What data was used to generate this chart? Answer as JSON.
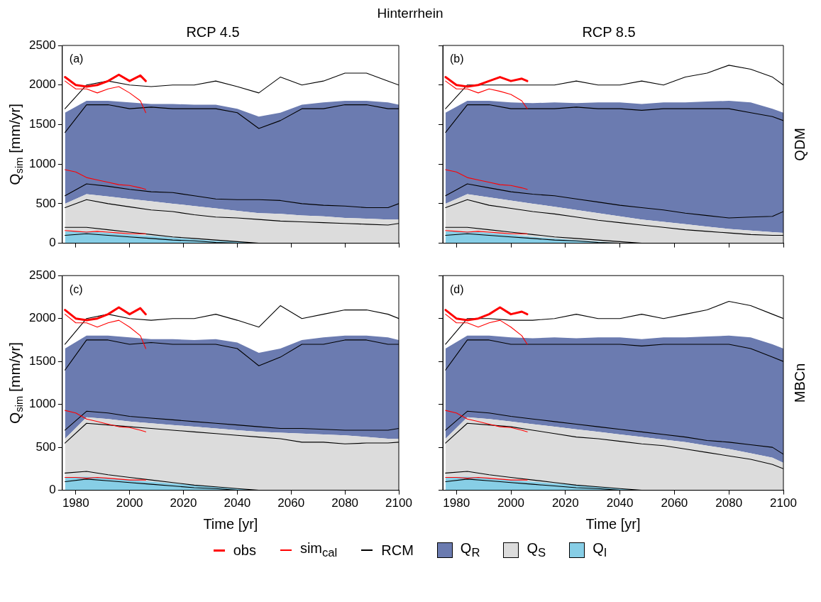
{
  "chart_data": [
    {
      "type": "area",
      "title": "Hinterrhein",
      "subtitle": "RCP 4.5",
      "ylabel": "Q$_{sim}$ [mm/yr]",
      "stacked": true,
      "grid": false,
      "legend": "bottom",
      "tick_labels": "y",
      "xlim": [
        1975,
        2100
      ],
      "xticks": [
        1980,
        2000,
        2020,
        2040,
        2060,
        2080,
        2100
      ],
      "ylim": [
        0,
        2500
      ],
      "yticks": [
        0,
        500,
        1000,
        1500,
        2000,
        2500
      ],
      "annotations": [
        "(a)"
      ],
      "x": [
        1976,
        1984,
        1992,
        2000,
        2008,
        2016,
        2024,
        2032,
        2040,
        2048,
        2056,
        2064,
        2072,
        2080,
        2088,
        2096,
        2100
      ],
      "series": [
        {
          "name": "Q$_{I}$",
          "color": "#87cee6",
          "values": [
            150,
            150,
            130,
            110,
            90,
            70,
            50,
            30,
            20,
            0,
            0,
            0,
            0,
            0,
            0,
            0,
            0
          ]
        },
        {
          "name": "Q$_{S}$",
          "color": "#dcdcdc",
          "values": [
            350,
            470,
            460,
            450,
            440,
            430,
            420,
            410,
            390,
            380,
            370,
            350,
            340,
            320,
            310,
            300,
            300
          ]
        },
        {
          "name": "Q$_{R}$",
          "color": "#6b7bb0",
          "values": [
            1150,
            1180,
            1210,
            1220,
            1230,
            1260,
            1280,
            1310,
            1290,
            1220,
            1280,
            1400,
            1440,
            1480,
            1490,
            1480,
            1450
          ]
        },
        {
          "type": "line",
          "name": "obs",
          "color": "#ff0000",
          "x": [
            1976,
            1980,
            1984,
            1988,
            1992,
            1996,
            2000,
            2004,
            2006
          ],
          "values": [
            2100,
            2000,
            1980,
            2000,
            2050,
            2130,
            2050,
            2120,
            2050
          ]
        },
        {
          "type": "line",
          "name": "sim$_{cal}$",
          "color": "#ff0000",
          "x": [
            1976,
            1980,
            1984,
            1988,
            1992,
            1996,
            2000,
            2004,
            2006
          ],
          "values": [
            2050,
            1950,
            1950,
            1900,
            1950,
            1980,
            1900,
            1800,
            1650
          ]
        },
        {
          "type": "line",
          "color": "#ff0000",
          "x": [
            1976,
            1980,
            1984,
            1988,
            1992,
            1996,
            2000,
            2004,
            2006
          ],
          "values": [
            930,
            900,
            830,
            800,
            770,
            740,
            730,
            700,
            680
          ]
        },
        {
          "type": "line",
          "color": "#ff0000",
          "x": [
            1976,
            1980,
            1984,
            1988,
            1992,
            1996,
            2000,
            2004,
            2006
          ],
          "values": [
            160,
            150,
            140,
            150,
            140,
            130,
            120,
            120,
            120
          ]
        },
        {
          "type": "line",
          "name": "RCM",
          "color": "#000000",
          "values": [
            1700,
            2000,
            2050,
            2000,
            1980,
            2000,
            2000,
            2050,
            1980,
            1900,
            2100,
            2000,
            2050,
            2150,
            2150,
            2050,
            2000
          ]
        },
        {
          "type": "line",
          "color": "#000000",
          "values": [
            1400,
            1750,
            1750,
            1700,
            1720,
            1700,
            1700,
            1700,
            1650,
            1450,
            1550,
            1700,
            1700,
            1750,
            1750,
            1700,
            1700
          ]
        },
        {
          "type": "line",
          "color": "#000000",
          "values": [
            600,
            750,
            720,
            680,
            650,
            640,
            600,
            560,
            550,
            550,
            540,
            500,
            480,
            470,
            450,
            450,
            500
          ]
        },
        {
          "type": "line",
          "color": "#000000",
          "values": [
            450,
            550,
            500,
            460,
            420,
            400,
            360,
            330,
            320,
            300,
            280,
            270,
            260,
            250,
            240,
            230,
            250
          ]
        },
        {
          "type": "line",
          "color": "#000000",
          "values": [
            200,
            200,
            170,
            140,
            110,
            80,
            60,
            40,
            20,
            0,
            0,
            0,
            0,
            0,
            0,
            0,
            0
          ]
        },
        {
          "type": "line",
          "color": "#000000",
          "values": [
            100,
            120,
            100,
            80,
            60,
            40,
            30,
            10,
            0,
            0,
            0,
            0,
            0,
            0,
            0,
            0,
            0
          ]
        }
      ]
    },
    {
      "type": "area",
      "subtitle": "RCP 8.5",
      "stacked": true,
      "grid": false,
      "tick_labels": false,
      "xlim": [
        1975,
        2100
      ],
      "xticks": [
        1980,
        2000,
        2020,
        2040,
        2060,
        2080,
        2100
      ],
      "ylim": [
        0,
        2500
      ],
      "yticks": [
        0,
        500,
        1000,
        1500,
        2000,
        2500
      ],
      "annotations": [
        "(b)",
        "QDM"
      ],
      "x": [
        1976,
        1984,
        1992,
        2000,
        2008,
        2016,
        2024,
        2032,
        2040,
        2048,
        2056,
        2064,
        2072,
        2080,
        2088,
        2096,
        2100
      ],
      "series": [
        {
          "color": "#87cee6",
          "values": [
            150,
            150,
            130,
            110,
            80,
            60,
            40,
            20,
            0,
            0,
            0,
            0,
            0,
            0,
            0,
            0,
            0
          ]
        },
        {
          "color": "#dcdcdc",
          "values": [
            350,
            470,
            450,
            430,
            420,
            400,
            380,
            360,
            340,
            300,
            270,
            240,
            210,
            180,
            160,
            140,
            130
          ]
        },
        {
          "color": "#6b7bb0",
          "values": [
            1150,
            1180,
            1220,
            1240,
            1270,
            1320,
            1350,
            1400,
            1440,
            1460,
            1510,
            1540,
            1580,
            1620,
            1620,
            1560,
            1520
          ]
        },
        {
          "type": "line",
          "color": "#ff0000",
          "x": [
            1976,
            1980,
            1984,
            1988,
            1992,
            1996,
            2000,
            2004,
            2006
          ],
          "values": [
            2100,
            2000,
            1980,
            2000,
            2050,
            2100,
            2050,
            2080,
            2050
          ]
        },
        {
          "type": "line",
          "color": "#ff0000",
          "x": [
            1976,
            1980,
            1984,
            1988,
            1992,
            1996,
            2000,
            2004,
            2006
          ],
          "values": [
            2050,
            1950,
            1950,
            1900,
            1950,
            1920,
            1880,
            1800,
            1700
          ]
        },
        {
          "type": "line",
          "color": "#ff0000",
          "x": [
            1976,
            1980,
            1984,
            1988,
            1992,
            1996,
            2000,
            2004,
            2006
          ],
          "values": [
            930,
            900,
            830,
            800,
            770,
            740,
            730,
            700,
            680
          ]
        },
        {
          "type": "line",
          "color": "#ff0000",
          "x": [
            1976,
            1980,
            1984,
            1988,
            1992,
            1996,
            2000,
            2004,
            2006
          ],
          "values": [
            160,
            150,
            140,
            150,
            140,
            130,
            120,
            120,
            120
          ]
        },
        {
          "type": "line",
          "color": "#000000",
          "values": [
            1700,
            2000,
            2000,
            2000,
            2000,
            2000,
            2050,
            2000,
            2000,
            2050,
            2000,
            2100,
            2150,
            2250,
            2200,
            2100,
            2000
          ]
        },
        {
          "type": "line",
          "color": "#000000",
          "values": [
            1400,
            1750,
            1750,
            1700,
            1700,
            1700,
            1720,
            1700,
            1700,
            1680,
            1700,
            1700,
            1700,
            1700,
            1650,
            1600,
            1550
          ]
        },
        {
          "type": "line",
          "color": "#000000",
          "values": [
            600,
            750,
            700,
            650,
            620,
            600,
            560,
            520,
            480,
            450,
            420,
            380,
            350,
            320,
            330,
            340,
            400
          ]
        },
        {
          "type": "line",
          "color": "#000000",
          "values": [
            450,
            550,
            480,
            440,
            400,
            370,
            330,
            290,
            260,
            230,
            200,
            170,
            150,
            130,
            110,
            100,
            100
          ]
        },
        {
          "type": "line",
          "color": "#000000",
          "values": [
            200,
            200,
            170,
            140,
            110,
            80,
            60,
            40,
            20,
            0,
            0,
            0,
            0,
            0,
            0,
            0,
            0
          ]
        },
        {
          "type": "line",
          "color": "#000000",
          "values": [
            100,
            120,
            100,
            80,
            60,
            40,
            30,
            10,
            0,
            0,
            0,
            0,
            0,
            0,
            0,
            0,
            0
          ]
        }
      ]
    },
    {
      "type": "area",
      "xlabel": "Time [yr]",
      "ylabel": "Q$_{sim}$ [mm/yr]",
      "stacked": true,
      "grid": false,
      "xlim": [
        1975,
        2100
      ],
      "xticks": [
        1980,
        2000,
        2020,
        2040,
        2060,
        2080,
        2100
      ],
      "ylim": [
        0,
        2500
      ],
      "yticks": [
        0,
        500,
        1000,
        1500,
        2000,
        2500
      ],
      "annotations": [
        "(c)"
      ],
      "x": [
        1976,
        1984,
        1992,
        2000,
        2008,
        2016,
        2024,
        2032,
        2040,
        2048,
        2056,
        2064,
        2072,
        2080,
        2088,
        2096,
        2100
      ],
      "series": [
        {
          "color": "#87cee6",
          "values": [
            150,
            160,
            140,
            120,
            100,
            80,
            60,
            40,
            20,
            0,
            0,
            0,
            0,
            0,
            0,
            0,
            0
          ]
        },
        {
          "color": "#dcdcdc",
          "values": [
            450,
            690,
            690,
            680,
            680,
            680,
            680,
            680,
            680,
            680,
            670,
            660,
            650,
            640,
            620,
            600,
            600
          ]
        },
        {
          "color": "#6b7bb0",
          "values": [
            1050,
            950,
            970,
            980,
            980,
            1000,
            1010,
            1040,
            1020,
            920,
            980,
            1090,
            1130,
            1160,
            1180,
            1180,
            1150
          ]
        },
        {
          "type": "line",
          "color": "#ff0000",
          "x": [
            1976,
            1980,
            1984,
            1988,
            1992,
            1996,
            2000,
            2004,
            2006
          ],
          "values": [
            2100,
            2000,
            1980,
            2000,
            2050,
            2130,
            2050,
            2120,
            2050
          ]
        },
        {
          "type": "line",
          "color": "#ff0000",
          "x": [
            1976,
            1980,
            1984,
            1988,
            1992,
            1996,
            2000,
            2004,
            2006
          ],
          "values": [
            2050,
            1950,
            1950,
            1900,
            1950,
            1980,
            1900,
            1800,
            1650
          ]
        },
        {
          "type": "line",
          "color": "#ff0000",
          "x": [
            1976,
            1980,
            1984,
            1988,
            1992,
            1996,
            2000,
            2004,
            2006
          ],
          "values": [
            930,
            900,
            830,
            800,
            770,
            740,
            730,
            700,
            680
          ]
        },
        {
          "type": "line",
          "color": "#ff0000",
          "x": [
            1976,
            1980,
            1984,
            1988,
            1992,
            1996,
            2000,
            2004,
            2006
          ],
          "values": [
            150,
            150,
            140,
            150,
            140,
            130,
            120,
            120,
            120
          ]
        },
        {
          "type": "line",
          "color": "#000000",
          "values": [
            1700,
            2000,
            2050,
            2000,
            1980,
            2000,
            2000,
            2050,
            1980,
            1900,
            2150,
            2000,
            2050,
            2100,
            2100,
            2050,
            2000
          ]
        },
        {
          "type": "line",
          "color": "#000000",
          "values": [
            1400,
            1750,
            1750,
            1700,
            1720,
            1700,
            1700,
            1700,
            1650,
            1450,
            1550,
            1700,
            1700,
            1750,
            1750,
            1700,
            1700
          ]
        },
        {
          "type": "line",
          "color": "#000000",
          "values": [
            700,
            920,
            900,
            860,
            840,
            820,
            800,
            780,
            760,
            740,
            720,
            720,
            710,
            700,
            700,
            700,
            720
          ]
        },
        {
          "type": "line",
          "color": "#000000",
          "values": [
            550,
            780,
            760,
            740,
            720,
            700,
            680,
            660,
            640,
            620,
            600,
            560,
            560,
            540,
            550,
            550,
            560
          ]
        },
        {
          "type": "line",
          "color": "#000000",
          "values": [
            200,
            220,
            180,
            150,
            120,
            90,
            60,
            40,
            20,
            0,
            0,
            0,
            0,
            0,
            0,
            0,
            0
          ]
        },
        {
          "type": "line",
          "color": "#000000",
          "values": [
            100,
            130,
            110,
            90,
            70,
            50,
            30,
            20,
            0,
            0,
            0,
            0,
            0,
            0,
            0,
            0,
            0
          ]
        }
      ]
    },
    {
      "type": "area",
      "xlabel": "Time [yr]",
      "stacked": true,
      "grid": false,
      "tick_labels": "x",
      "xlim": [
        1975,
        2100
      ],
      "xticks": [
        1980,
        2000,
        2020,
        2040,
        2060,
        2080,
        2100
      ],
      "ylim": [
        0,
        2500
      ],
      "yticks": [
        0,
        500,
        1000,
        1500,
        2000,
        2500
      ],
      "annotations": [
        "(d)",
        "MBCn"
      ],
      "x": [
        1976,
        1984,
        1992,
        2000,
        2008,
        2016,
        2024,
        2032,
        2040,
        2048,
        2056,
        2064,
        2072,
        2080,
        2088,
        2096,
        2100
      ],
      "series": [
        {
          "color": "#87cee6",
          "values": [
            150,
            160,
            140,
            120,
            100,
            80,
            60,
            40,
            20,
            0,
            0,
            0,
            0,
            0,
            0,
            0,
            0
          ]
        },
        {
          "color": "#dcdcdc",
          "values": [
            450,
            690,
            690,
            680,
            670,
            660,
            650,
            640,
            630,
            620,
            590,
            560,
            520,
            480,
            430,
            380,
            320
          ]
        },
        {
          "color": "#6b7bb0",
          "values": [
            1050,
            950,
            970,
            980,
            1000,
            1040,
            1060,
            1100,
            1130,
            1140,
            1190,
            1220,
            1270,
            1320,
            1350,
            1320,
            1330
          ]
        },
        {
          "type": "line",
          "color": "#ff0000",
          "x": [
            1976,
            1980,
            1984,
            1988,
            1992,
            1996,
            2000,
            2004,
            2006
          ],
          "values": [
            2100,
            2000,
            1980,
            2000,
            2050,
            2130,
            2050,
            2080,
            2050
          ]
        },
        {
          "type": "line",
          "color": "#ff0000",
          "x": [
            1976,
            1980,
            1984,
            1988,
            1992,
            1996,
            2000,
            2004,
            2006
          ],
          "values": [
            2050,
            1950,
            1950,
            1900,
            1950,
            1980,
            1900,
            1800,
            1700
          ]
        },
        {
          "type": "line",
          "color": "#ff0000",
          "x": [
            1976,
            1980,
            1984,
            1988,
            1992,
            1996,
            2000,
            2004,
            2006
          ],
          "values": [
            930,
            900,
            830,
            800,
            770,
            740,
            730,
            700,
            680
          ]
        },
        {
          "type": "line",
          "color": "#ff0000",
          "x": [
            1976,
            1980,
            1984,
            1988,
            1992,
            1996,
            2000,
            2004,
            2006
          ],
          "values": [
            150,
            150,
            140,
            150,
            140,
            130,
            120,
            120,
            120
          ]
        },
        {
          "type": "line",
          "color": "#000000",
          "values": [
            1700,
            2000,
            2000,
            1980,
            1980,
            2000,
            2050,
            2000,
            2000,
            2050,
            2000,
            2050,
            2100,
            2200,
            2150,
            2050,
            2000
          ]
        },
        {
          "type": "line",
          "color": "#000000",
          "values": [
            1400,
            1750,
            1750,
            1700,
            1700,
            1700,
            1700,
            1700,
            1700,
            1680,
            1700,
            1700,
            1700,
            1700,
            1650,
            1550,
            1500
          ]
        },
        {
          "type": "line",
          "color": "#000000",
          "values": [
            700,
            920,
            900,
            860,
            830,
            800,
            770,
            740,
            710,
            680,
            650,
            620,
            580,
            560,
            530,
            500,
            420
          ]
        },
        {
          "type": "line",
          "color": "#000000",
          "values": [
            550,
            780,
            760,
            740,
            700,
            660,
            620,
            600,
            570,
            540,
            520,
            480,
            440,
            400,
            360,
            300,
            250
          ]
        },
        {
          "type": "line",
          "color": "#000000",
          "values": [
            200,
            220,
            180,
            150,
            120,
            90,
            60,
            40,
            20,
            0,
            0,
            0,
            0,
            0,
            0,
            0,
            0
          ]
        },
        {
          "type": "line",
          "color": "#000000",
          "values": [
            100,
            130,
            110,
            90,
            70,
            50,
            30,
            20,
            0,
            0,
            0,
            0,
            0,
            0,
            0,
            0,
            0
          ]
        }
      ]
    }
  ]
}
